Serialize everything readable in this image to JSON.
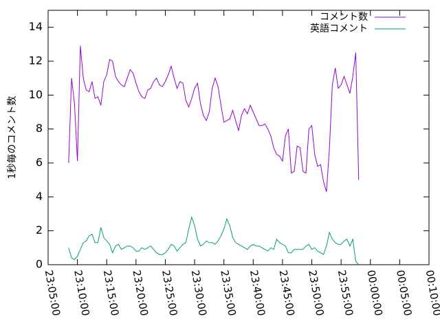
{
  "chart_data": {
    "type": "line",
    "title": "",
    "xlabel": "",
    "ylabel": "1秒毎のコメント数",
    "ylim": [
      0,
      15
    ],
    "y_ticks": [
      0,
      2,
      4,
      6,
      8,
      10,
      12,
      14
    ],
    "xlim": [
      "23:05:00",
      "00:10:00"
    ],
    "x_tick_labels": [
      "23:05:00",
      "23:10:00",
      "23:15:00",
      "23:20:00",
      "23:25:00",
      "23:30:00",
      "23:35:00",
      "23:40:00",
      "23:45:00",
      "23:50:00",
      "23:55:00",
      "00:00:00",
      "00:05:00",
      "00:10:00"
    ],
    "grid": false,
    "legend_position": "top-right",
    "series": [
      {
        "name": "コメント数",
        "color": "#9400d3",
        "points": [
          [
            "23:08:30",
            6.0
          ],
          [
            "23:09:00",
            11.0
          ],
          [
            "23:09:30",
            9.5
          ],
          [
            "23:10:00",
            6.1
          ],
          [
            "23:10:30",
            12.9
          ],
          [
            "23:11:00",
            11.0
          ],
          [
            "23:11:30",
            10.3
          ],
          [
            "23:12:00",
            10.2
          ],
          [
            "23:12:30",
            10.8
          ],
          [
            "23:13:00",
            9.8
          ],
          [
            "23:13:30",
            9.9
          ],
          [
            "23:14:00",
            9.4
          ],
          [
            "23:14:30",
            10.8
          ],
          [
            "23:15:00",
            11.2
          ],
          [
            "23:15:30",
            12.1
          ],
          [
            "23:16:00",
            12.0
          ],
          [
            "23:16:30",
            11.1
          ],
          [
            "23:17:00",
            10.8
          ],
          [
            "23:17:30",
            10.6
          ],
          [
            "23:18:00",
            10.5
          ],
          [
            "23:18:30",
            11.0
          ],
          [
            "23:19:00",
            11.5
          ],
          [
            "23:19:30",
            11.3
          ],
          [
            "23:20:00",
            10.7
          ],
          [
            "23:20:30",
            10.2
          ],
          [
            "23:21:00",
            9.9
          ],
          [
            "23:21:30",
            9.8
          ],
          [
            "23:22:00",
            10.3
          ],
          [
            "23:22:30",
            10.4
          ],
          [
            "23:23:00",
            10.8
          ],
          [
            "23:23:30",
            11.0
          ],
          [
            "23:24:00",
            10.6
          ],
          [
            "23:24:30",
            10.5
          ],
          [
            "23:25:00",
            10.8
          ],
          [
            "23:25:30",
            11.2
          ],
          [
            "23:26:00",
            11.7
          ],
          [
            "23:26:30",
            11.0
          ],
          [
            "23:27:00",
            10.4
          ],
          [
            "23:27:30",
            10.8
          ],
          [
            "23:28:00",
            10.7
          ],
          [
            "23:28:30",
            9.7
          ],
          [
            "23:29:00",
            9.3
          ],
          [
            "23:29:30",
            9.8
          ],
          [
            "23:30:00",
            10.4
          ],
          [
            "23:30:30",
            10.7
          ],
          [
            "23:31:00",
            9.5
          ],
          [
            "23:31:30",
            8.8
          ],
          [
            "23:32:00",
            8.5
          ],
          [
            "23:32:30",
            9.0
          ],
          [
            "23:33:00",
            10.4
          ],
          [
            "23:33:30",
            11.0
          ],
          [
            "23:34:00",
            10.5
          ],
          [
            "23:34:30",
            9.4
          ],
          [
            "23:35:00",
            8.4
          ],
          [
            "23:35:30",
            8.5
          ],
          [
            "23:36:00",
            8.6
          ],
          [
            "23:36:30",
            9.1
          ],
          [
            "23:37:00",
            8.5
          ],
          [
            "23:37:30",
            7.9
          ],
          [
            "23:38:00",
            8.8
          ],
          [
            "23:38:30",
            9.2
          ],
          [
            "23:39:00",
            8.9
          ],
          [
            "23:39:30",
            9.4
          ],
          [
            "23:40:00",
            9.0
          ],
          [
            "23:40:30",
            8.6
          ],
          [
            "23:41:00",
            8.2
          ],
          [
            "23:41:30",
            8.2
          ],
          [
            "23:42:00",
            8.3
          ],
          [
            "23:42:30",
            8.0
          ],
          [
            "23:43:00",
            7.6
          ],
          [
            "23:43:30",
            6.9
          ],
          [
            "23:44:00",
            6.5
          ],
          [
            "23:44:30",
            6.4
          ],
          [
            "23:45:00",
            6.1
          ],
          [
            "23:45:30",
            7.6
          ],
          [
            "23:46:00",
            8.0
          ],
          [
            "23:46:30",
            5.4
          ],
          [
            "23:47:00",
            5.5
          ],
          [
            "23:47:30",
            7.0
          ],
          [
            "23:48:00",
            6.9
          ],
          [
            "23:48:30",
            5.5
          ],
          [
            "23:49:00",
            5.4
          ],
          [
            "23:49:30",
            8.0
          ],
          [
            "23:50:00",
            8.2
          ],
          [
            "23:50:30",
            6.5
          ],
          [
            "23:51:00",
            5.8
          ],
          [
            "23:51:30",
            5.9
          ],
          [
            "23:52:00",
            4.9
          ],
          [
            "23:52:30",
            4.3
          ],
          [
            "23:53:00",
            6.8
          ],
          [
            "23:53:30",
            10.6
          ],
          [
            "23:54:00",
            11.6
          ],
          [
            "23:54:30",
            10.4
          ],
          [
            "23:55:00",
            10.6
          ],
          [
            "23:55:30",
            11.1
          ],
          [
            "23:56:00",
            10.6
          ],
          [
            "23:56:30",
            10.1
          ],
          [
            "23:57:00",
            11.1
          ],
          [
            "23:57:30",
            12.5
          ],
          [
            "23:58:00",
            5.0
          ]
        ]
      },
      {
        "name": "英語コメント",
        "color": "#009e73",
        "points": [
          [
            "23:08:30",
            1.0
          ],
          [
            "23:09:00",
            0.4
          ],
          [
            "23:09:30",
            0.3
          ],
          [
            "23:10:00",
            0.5
          ],
          [
            "23:10:30",
            0.9
          ],
          [
            "23:11:00",
            1.3
          ],
          [
            "23:11:30",
            1.4
          ],
          [
            "23:12:00",
            1.7
          ],
          [
            "23:12:30",
            1.8
          ],
          [
            "23:13:00",
            1.3
          ],
          [
            "23:13:30",
            1.3
          ],
          [
            "23:14:00",
            2.2
          ],
          [
            "23:14:30",
            1.6
          ],
          [
            "23:15:00",
            1.4
          ],
          [
            "23:15:30",
            1.2
          ],
          [
            "23:16:00",
            0.7
          ],
          [
            "23:16:30",
            1.1
          ],
          [
            "23:17:00",
            1.2
          ],
          [
            "23:17:30",
            0.9
          ],
          [
            "23:18:00",
            1.0
          ],
          [
            "23:18:30",
            1.1
          ],
          [
            "23:19:00",
            1.1
          ],
          [
            "23:19:30",
            1.0
          ],
          [
            "23:20:00",
            0.8
          ],
          [
            "23:20:30",
            0.8
          ],
          [
            "23:21:00",
            1.0
          ],
          [
            "23:21:30",
            0.9
          ],
          [
            "23:22:00",
            1.0
          ],
          [
            "23:22:30",
            1.1
          ],
          [
            "23:23:00",
            0.9
          ],
          [
            "23:23:30",
            0.7
          ],
          [
            "23:24:00",
            0.6
          ],
          [
            "23:24:30",
            0.6
          ],
          [
            "23:25:00",
            0.7
          ],
          [
            "23:25:30",
            0.9
          ],
          [
            "23:26:00",
            1.2
          ],
          [
            "23:26:30",
            1.1
          ],
          [
            "23:27:00",
            0.8
          ],
          [
            "23:27:30",
            1.0
          ],
          [
            "23:28:00",
            1.2
          ],
          [
            "23:28:30",
            1.3
          ],
          [
            "23:29:00",
            2.1
          ],
          [
            "23:29:30",
            2.8
          ],
          [
            "23:30:00",
            2.3
          ],
          [
            "23:30:30",
            1.5
          ],
          [
            "23:31:00",
            1.1
          ],
          [
            "23:31:30",
            1.2
          ],
          [
            "23:32:00",
            1.4
          ],
          [
            "23:32:30",
            1.3
          ],
          [
            "23:33:00",
            1.3
          ],
          [
            "23:33:30",
            1.2
          ],
          [
            "23:34:00",
            1.4
          ],
          [
            "23:34:30",
            1.7
          ],
          [
            "23:35:00",
            2.1
          ],
          [
            "23:35:30",
            2.7
          ],
          [
            "23:36:00",
            2.3
          ],
          [
            "23:36:30",
            1.6
          ],
          [
            "23:37:00",
            1.3
          ],
          [
            "23:37:30",
            1.2
          ],
          [
            "23:38:00",
            1.1
          ],
          [
            "23:38:30",
            1.0
          ],
          [
            "23:39:00",
            0.9
          ],
          [
            "23:39:30",
            1.1
          ],
          [
            "23:40:00",
            1.2
          ],
          [
            "23:40:30",
            1.1
          ],
          [
            "23:41:00",
            1.1
          ],
          [
            "23:41:30",
            1.0
          ],
          [
            "23:42:00",
            0.9
          ],
          [
            "23:42:30",
            0.8
          ],
          [
            "23:43:00",
            1.0
          ],
          [
            "23:43:30",
            0.9
          ],
          [
            "23:44:00",
            1.5
          ],
          [
            "23:44:30",
            1.3
          ],
          [
            "23:45:00",
            1.2
          ],
          [
            "23:45:30",
            1.1
          ],
          [
            "23:46:00",
            0.7
          ],
          [
            "23:46:30",
            0.7
          ],
          [
            "23:47:00",
            0.9
          ],
          [
            "23:47:30",
            0.9
          ],
          [
            "23:48:00",
            0.9
          ],
          [
            "23:48:30",
            0.9
          ],
          [
            "23:49:00",
            1.1
          ],
          [
            "23:49:30",
            1.2
          ],
          [
            "23:50:00",
            0.9
          ],
          [
            "23:50:30",
            1.0
          ],
          [
            "23:51:00",
            0.8
          ],
          [
            "23:51:30",
            0.7
          ],
          [
            "23:52:00",
            0.6
          ],
          [
            "23:52:30",
            1.1
          ],
          [
            "23:53:00",
            1.9
          ],
          [
            "23:53:30",
            1.5
          ],
          [
            "23:54:00",
            1.3
          ],
          [
            "23:54:30",
            1.2
          ],
          [
            "23:55:00",
            1.2
          ],
          [
            "23:55:30",
            1.4
          ],
          [
            "23:56:00",
            1.5
          ],
          [
            "23:56:30",
            1.1
          ],
          [
            "23:57:00",
            1.5
          ],
          [
            "23:57:30",
            0.2
          ],
          [
            "23:58:00",
            0.0
          ]
        ]
      }
    ]
  }
}
